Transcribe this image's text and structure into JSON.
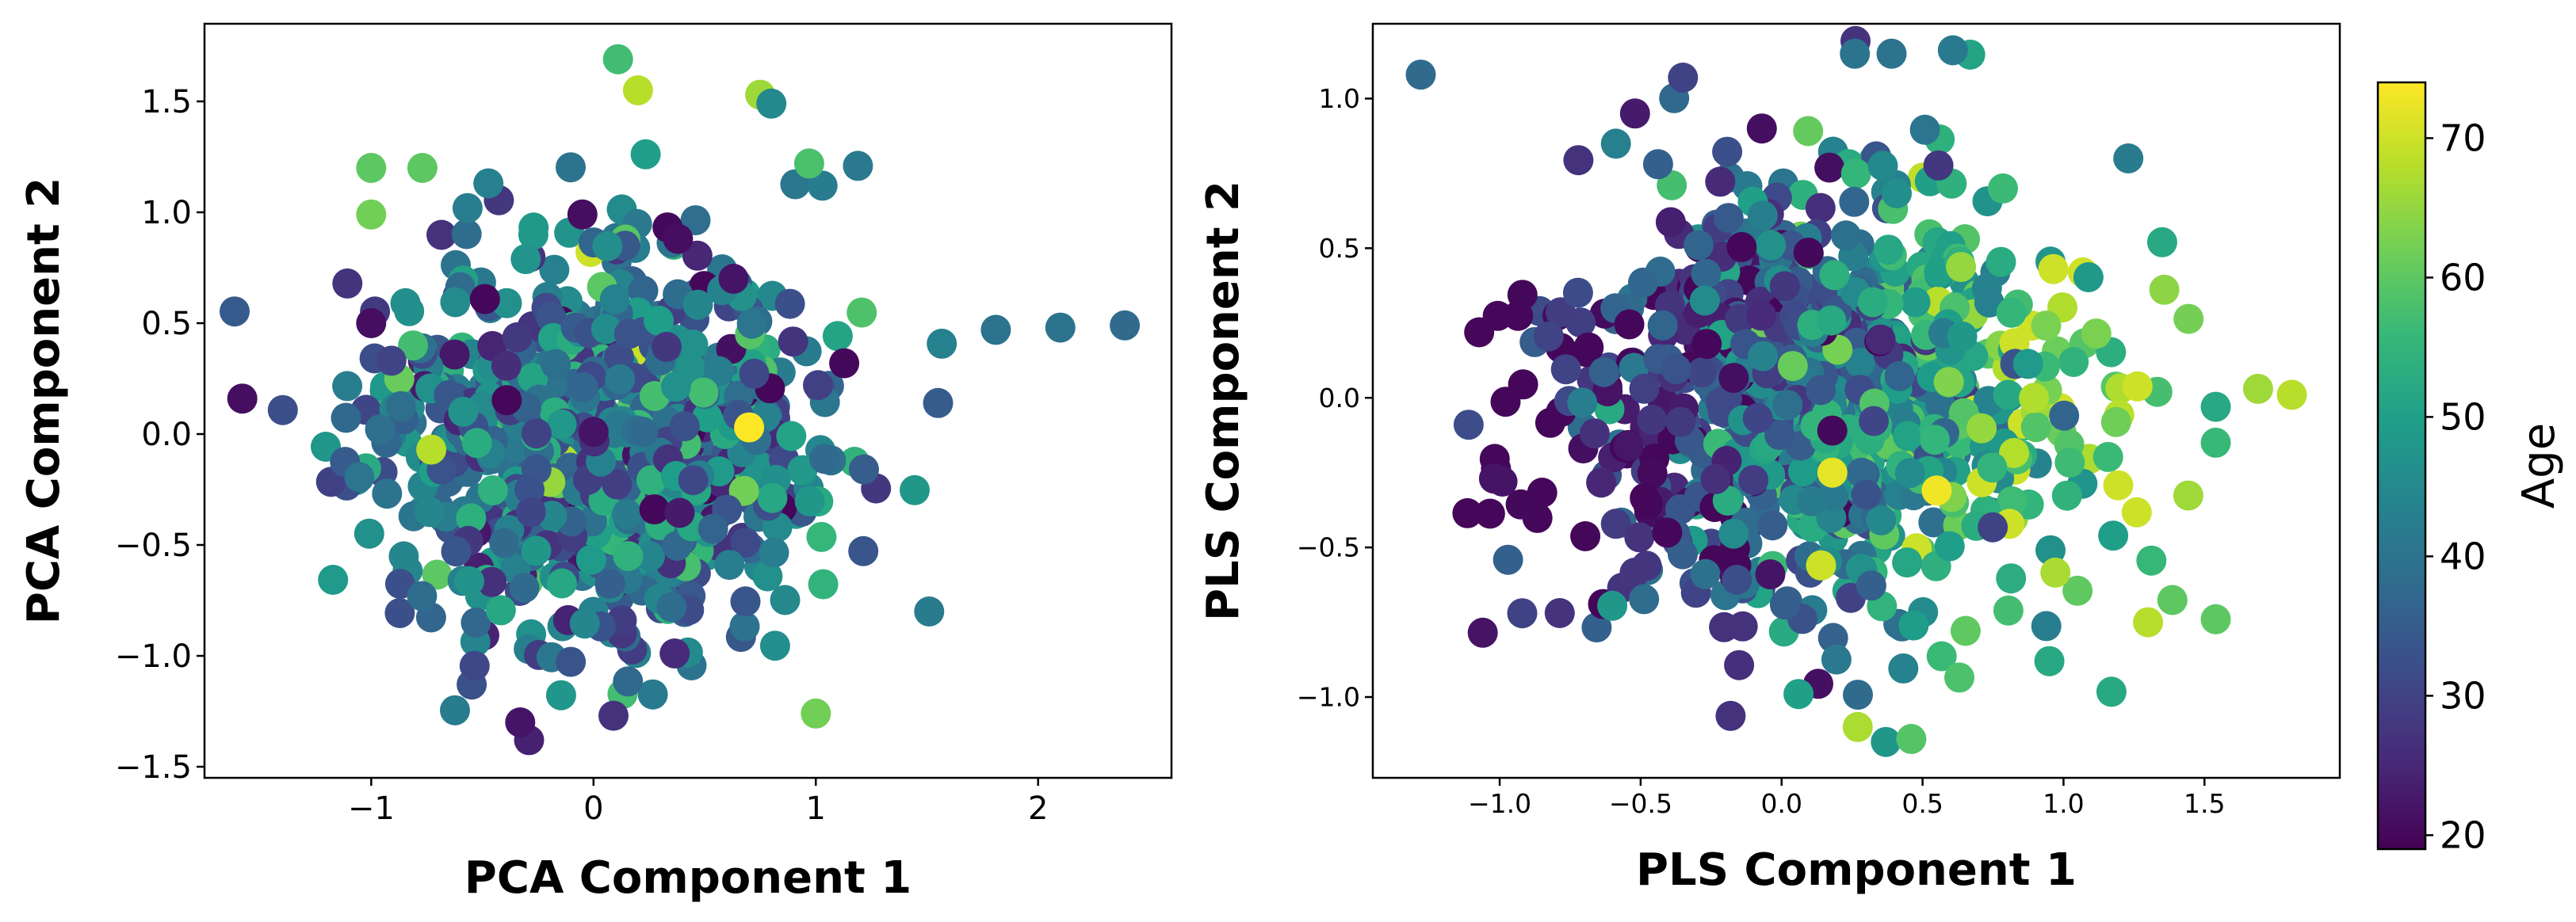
{
  "chart_data": [
    {
      "type": "scatter",
      "xlabel": "PCA Component 1",
      "ylabel": "PCA Component 2",
      "xlim": [
        -1.75,
        2.6
      ],
      "ylim": [
        -1.55,
        1.85
      ],
      "xticks": [
        -1,
        0,
        1,
        2
      ],
      "yticks": [
        -1.5,
        -1.0,
        -0.5,
        0.0,
        0.5,
        1.0,
        1.5
      ],
      "xtick_labels": [
        "−1",
        "0",
        "1",
        "2"
      ],
      "ytick_labels": [
        "−1.5",
        "−1.0",
        "−0.5",
        "0.0",
        "0.5",
        "1.0",
        "1.5"
      ],
      "color_variable": "Age",
      "cloud": {
        "n": 900,
        "center": [
          0.05,
          -0.05
        ],
        "spread": [
          0.48,
          0.42
        ],
        "age_slope": 0,
        "seed": 11
      },
      "points": [
        {
          "x": -1.58,
          "y": 0.16,
          "age": 21
        },
        {
          "x": 2.39,
          "y": 0.49,
          "age": 38
        },
        {
          "x": 2.1,
          "y": 0.48,
          "age": 40
        },
        {
          "x": 1.81,
          "y": 0.47,
          "age": 40
        },
        {
          "x": 0.11,
          "y": 1.69,
          "age": 57
        },
        {
          "x": 0.2,
          "y": 1.55,
          "age": 68
        },
        {
          "x": 0.75,
          "y": 1.53,
          "age": 66
        },
        {
          "x": 0.8,
          "y": 1.49,
          "age": 45
        },
        {
          "x": 0.7,
          "y": 0.03,
          "age": 74
        },
        {
          "x": -0.73,
          "y": -0.07,
          "age": 68
        },
        {
          "x": 1.0,
          "y": -1.26,
          "age": 62
        },
        {
          "x": -0.29,
          "y": -1.38,
          "age": 24
        },
        {
          "x": -0.33,
          "y": -1.3,
          "age": 22
        },
        {
          "x": 0.09,
          "y": -1.27,
          "age": 27
        },
        {
          "x": -1.0,
          "y": 0.5,
          "age": 21
        },
        {
          "x": -0.05,
          "y": 0.99,
          "age": 21
        },
        {
          "x": 0.38,
          "y": 0.88,
          "age": 21
        },
        {
          "x": 0.63,
          "y": 0.7,
          "age": 22
        },
        {
          "x": 0.0,
          "y": 0.01,
          "age": 22
        },
        {
          "x": 1.55,
          "y": 0.14,
          "age": 35
        },
        {
          "x": 1.51,
          "y": -0.8,
          "age": 42
        },
        {
          "x": 1.03,
          "y": 1.12,
          "age": 42
        },
        {
          "x": 0.97,
          "y": 1.22,
          "age": 58
        },
        {
          "x": -0.77,
          "y": 1.2,
          "age": 60
        },
        {
          "x": -1.0,
          "y": 1.2,
          "age": 60
        },
        {
          "x": -1.0,
          "y": 0.99,
          "age": 62
        }
      ]
    },
    {
      "type": "scatter",
      "xlabel": "PLS Component 1",
      "ylabel": "PLS Component 2",
      "xlim": [
        -1.45,
        1.98
      ],
      "ylim": [
        -1.27,
        1.25
      ],
      "xticks": [
        -1.0,
        -0.5,
        0.0,
        0.5,
        1.0,
        1.5
      ],
      "yticks": [
        -1.0,
        -0.5,
        0.0,
        0.5,
        1.0
      ],
      "xtick_labels": [
        "−1.0",
        "−0.5",
        "0.0",
        "0.5",
        "1.0",
        "1.5"
      ],
      "ytick_labels": [
        "−1.0",
        "−0.5",
        "0.0",
        "0.5",
        "1.0"
      ],
      "color_variable": "Age",
      "cloud": {
        "n": 900,
        "center": [
          0.1,
          0.0
        ],
        "spread": [
          0.45,
          0.35
        ],
        "age_slope": 18,
        "seed": 23
      },
      "points": [
        {
          "x": -1.28,
          "y": 1.08,
          "age": 38
        },
        {
          "x": -1.02,
          "y": -0.27,
          "age": 22
        },
        {
          "x": -0.99,
          "y": -0.28,
          "age": 22
        },
        {
          "x": -1.11,
          "y": -0.09,
          "age": 32
        },
        {
          "x": -0.92,
          "y": -0.72,
          "age": 30
        },
        {
          "x": -0.07,
          "y": 0.9,
          "age": 21
        },
        {
          "x": -0.52,
          "y": 0.95,
          "age": 23
        },
        {
          "x": -0.35,
          "y": 1.07,
          "age": 30
        },
        {
          "x": 0.26,
          "y": 1.15,
          "age": 40
        },
        {
          "x": 0.39,
          "y": 1.15,
          "age": 40
        },
        {
          "x": -0.04,
          "y": -0.59,
          "age": 22
        },
        {
          "x": 0.14,
          "y": -0.56,
          "age": 70
        },
        {
          "x": 0.55,
          "y": -0.31,
          "age": 73
        },
        {
          "x": 0.18,
          "y": -0.25,
          "age": 72
        },
        {
          "x": 0.27,
          "y": -1.1,
          "age": 67
        },
        {
          "x": 0.37,
          "y": -1.15,
          "age": 48
        },
        {
          "x": 0.46,
          "y": -1.14,
          "age": 59
        },
        {
          "x": 1.81,
          "y": 0.01,
          "age": 68
        },
        {
          "x": 1.69,
          "y": 0.03,
          "age": 66
        },
        {
          "x": 1.3,
          "y": -0.75,
          "age": 68
        },
        {
          "x": 1.54,
          "y": -0.74,
          "age": 60
        },
        {
          "x": 1.23,
          "y": 0.8,
          "age": 42
        },
        {
          "x": 1.35,
          "y": 0.52,
          "age": 52
        },
        {
          "x": 1.54,
          "y": -0.03,
          "age": 52
        },
        {
          "x": 1.54,
          "y": -0.15,
          "age": 56
        },
        {
          "x": 0.95,
          "y": -0.88,
          "age": 52
        },
        {
          "x": 0.06,
          "y": -0.99,
          "age": 50
        }
      ]
    }
  ],
  "colorbar": {
    "label": "Age",
    "min": 19,
    "max": 74,
    "ticks": [
      20,
      30,
      40,
      50,
      60,
      70
    ],
    "tick_labels": [
      "20",
      "30",
      "40",
      "50",
      "60",
      "70"
    ],
    "colormap": "viridis",
    "colormap_stops": [
      "#440154",
      "#482878",
      "#3e4989",
      "#31688e",
      "#26828e",
      "#1f9e89",
      "#35b779",
      "#6ece58",
      "#b5de2b",
      "#fde725"
    ]
  }
}
